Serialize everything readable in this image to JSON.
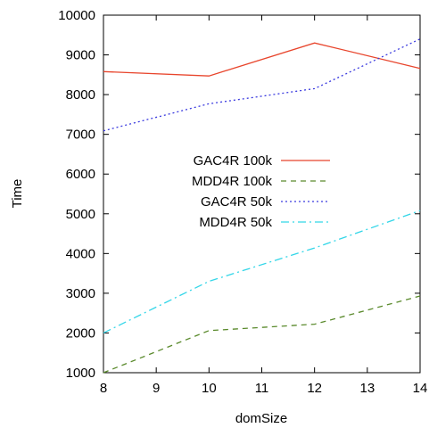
{
  "chart_data": {
    "type": "line",
    "xlabel": "domSize",
    "ylabel": "Time",
    "xlim": [
      8,
      14
    ],
    "ylim": [
      1000,
      10000
    ],
    "xticks": [
      8,
      9,
      10,
      11,
      12,
      13,
      14
    ],
    "yticks": [
      1000,
      2000,
      3000,
      4000,
      5000,
      6000,
      7000,
      8000,
      9000,
      10000
    ],
    "grid": false,
    "legend_position": "center-left",
    "series": [
      {
        "name": "GAC4R 100k",
        "x": [
          8,
          10,
          12,
          14
        ],
        "values": [
          8580,
          8470,
          9300,
          8660
        ],
        "color": "#e8452c",
        "dash": "solid"
      },
      {
        "name": "MDD4R 100k",
        "x": [
          8,
          10,
          12,
          14
        ],
        "values": [
          1000,
          2060,
          2220,
          2930
        ],
        "color": "#5a8a2c",
        "dash": "dashed"
      },
      {
        "name": "GAC4R 50k",
        "x": [
          8,
          10,
          12,
          14
        ],
        "values": [
          7090,
          7770,
          8150,
          9400
        ],
        "color": "#3a3adf",
        "dash": "dotted"
      },
      {
        "name": "MDD4R 50k",
        "x": [
          8,
          10,
          12,
          14
        ],
        "values": [
          2000,
          3300,
          4140,
          5080
        ],
        "color": "#33d6e8",
        "dash": "dashdot"
      }
    ]
  }
}
